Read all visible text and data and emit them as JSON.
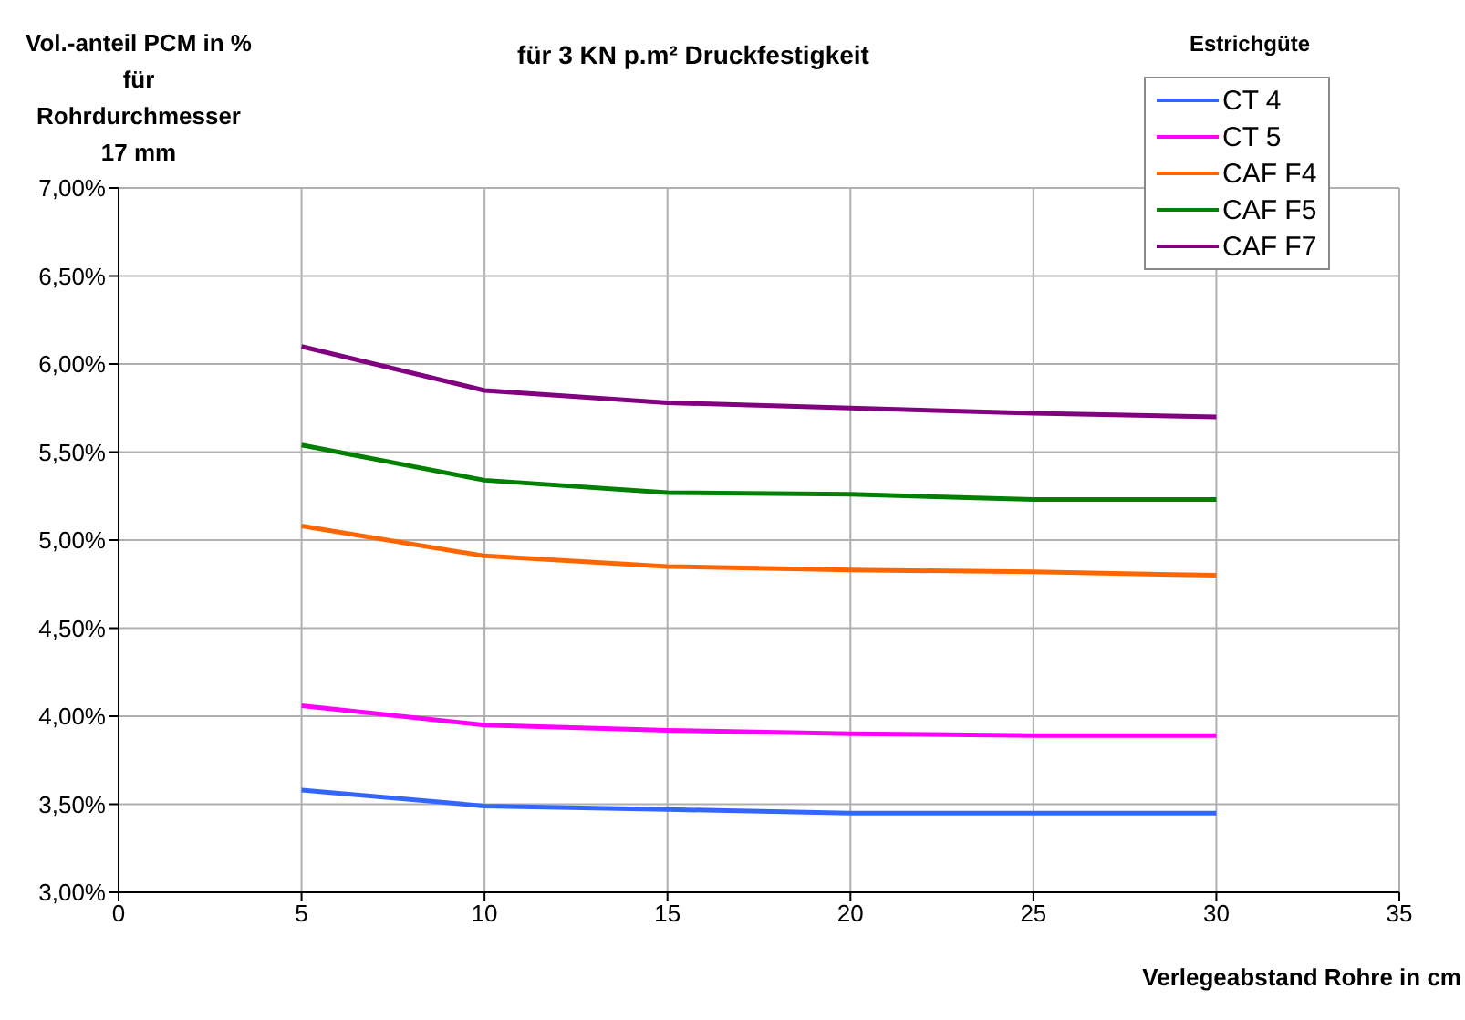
{
  "chart_data": {
    "type": "line",
    "title": "für 3 KN p.m² Druckfestigkeit",
    "ylabel": "Vol.-anteil PCM in % für Rohrdurchmesser 17 mm",
    "xlabel": "Verlegeabstand Rohre in cm",
    "legend_title": "Estrichgüte",
    "x": [
      5,
      10,
      15,
      20,
      25,
      30
    ],
    "series": [
      {
        "name": "CT 4",
        "color": "#3366ff",
        "values": [
          3.58,
          3.49,
          3.47,
          3.45,
          3.45,
          3.45
        ]
      },
      {
        "name": "CT 5",
        "color": "#ff00ff",
        "values": [
          4.06,
          3.95,
          3.92,
          3.9,
          3.89,
          3.89
        ]
      },
      {
        "name": "CAF F4",
        "color": "#ff6600",
        "values": [
          5.08,
          4.91,
          4.85,
          4.83,
          4.82,
          4.8
        ]
      },
      {
        "name": "CAF F5",
        "color": "#008000",
        "values": [
          5.54,
          5.34,
          5.27,
          5.26,
          5.23,
          5.23
        ]
      },
      {
        "name": "CAF F7",
        "color": "#800080",
        "values": [
          6.1,
          5.85,
          5.78,
          5.75,
          5.72,
          5.7
        ]
      }
    ],
    "xlim": [
      0,
      35
    ],
    "xticks": [
      0,
      5,
      10,
      15,
      20,
      25,
      30,
      35
    ],
    "ylim": [
      3,
      7
    ],
    "yticks": [
      {
        "value": 3,
        "label": "3,00%"
      },
      {
        "value": 3.5,
        "label": "3,50%"
      },
      {
        "value": 4,
        "label": "4,00%"
      },
      {
        "value": 4.5,
        "label": "4,50%"
      },
      {
        "value": 5,
        "label": "5,00%"
      },
      {
        "value": 5.5,
        "label": "5,50%"
      },
      {
        "value": 6,
        "label": "6,00%"
      },
      {
        "value": 6.5,
        "label": "6,50%"
      },
      {
        "value": 7,
        "label": "7,00%"
      }
    ],
    "grid": true,
    "legend": "top right",
    "marker": "none",
    "line_style": "solid"
  }
}
